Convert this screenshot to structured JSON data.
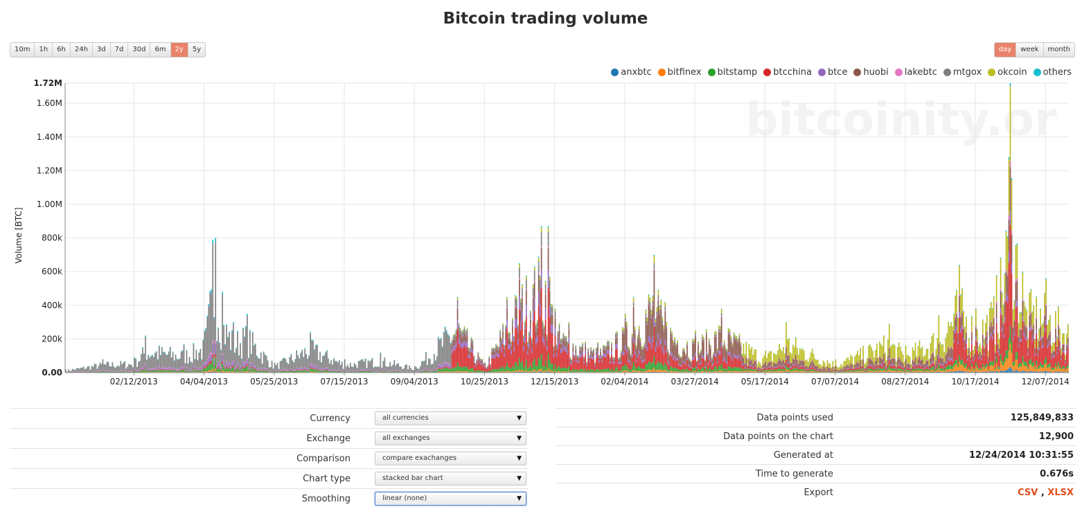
{
  "chart_data": {
    "type": "bar",
    "stacked": true,
    "title": "Bitcoin trading volume",
    "ylabel": "Volume [BTC]",
    "xlabel": "",
    "ylim": [
      0,
      1720000
    ],
    "y_ticks": [
      "0.00",
      "200k",
      "400k",
      "600k",
      "800k",
      "1.00M",
      "1.20M",
      "1.40M",
      "1.60M",
      "1.72M"
    ],
    "x_tick_labels": [
      "02/12/2013",
      "04/04/2013",
      "05/25/2013",
      "07/15/2013",
      "09/04/2013",
      "10/25/2013",
      "12/15/2013",
      "02/04/2014",
      "03/27/2014",
      "05/17/2014",
      "07/07/2014",
      "08/27/2014",
      "10/17/2014",
      "12/07/2014"
    ],
    "x_range": [
      "12/24/2012",
      "12/24/2014"
    ],
    "bar_period": "day",
    "watermark": "bitcoinity.or",
    "legend_position": "top-right",
    "colors": {
      "anxbtc": "#1f77b4",
      "bitfinex": "#ff7f0e",
      "bitstamp": "#2ca02c",
      "btcchina": "#d62728",
      "btce": "#9467bd",
      "huobi": "#8c564b",
      "lakebtc": "#e377c2",
      "mtgox": "#7f7f7f",
      "okcoin": "#bcbd22",
      "others": "#17becf"
    },
    "series_names": [
      "anxbtc",
      "bitfinex",
      "bitstamp",
      "btcchina",
      "btce",
      "huobi",
      "lakebtc",
      "mtgox",
      "okcoin",
      "others"
    ],
    "total_volume_by_date": [
      {
        "date": "12/24/2012",
        "value": 20000
      },
      {
        "date": "01/20/2013",
        "value": 80000
      },
      {
        "date": "02/12/2013",
        "value": 90000
      },
      {
        "date": "02/20/2013",
        "value": 220000
      },
      {
        "date": "03/20/2013",
        "value": 170000
      },
      {
        "date": "04/04/2013",
        "value": 250000
      },
      {
        "date": "04/10/2013",
        "value": 790000
      },
      {
        "date": "04/12/2013",
        "value": 800000
      },
      {
        "date": "04/17/2013",
        "value": 480000
      },
      {
        "date": "04/25/2013",
        "value": 300000
      },
      {
        "date": "05/05/2013",
        "value": 350000
      },
      {
        "date": "05/25/2013",
        "value": 60000
      },
      {
        "date": "06/20/2013",
        "value": 240000
      },
      {
        "date": "07/15/2013",
        "value": 80000
      },
      {
        "date": "08/10/2013",
        "value": 120000
      },
      {
        "date": "09/04/2013",
        "value": 40000
      },
      {
        "date": "10/05/2013",
        "value": 450000
      },
      {
        "date": "10/25/2013",
        "value": 60000
      },
      {
        "date": "11/10/2013",
        "value": 450000
      },
      {
        "date": "11/19/2013",
        "value": 650000
      },
      {
        "date": "12/05/2013",
        "value": 870000
      },
      {
        "date": "12/10/2013",
        "value": 870000
      },
      {
        "date": "12/15/2013",
        "value": 380000
      },
      {
        "date": "12/25/2013",
        "value": 300000
      },
      {
        "date": "01/15/2014",
        "value": 180000
      },
      {
        "date": "02/04/2014",
        "value": 350000
      },
      {
        "date": "02/10/2014",
        "value": 450000
      },
      {
        "date": "02/25/2014",
        "value": 700000
      },
      {
        "date": "03/05/2014",
        "value": 420000
      },
      {
        "date": "03/27/2014",
        "value": 250000
      },
      {
        "date": "04/15/2014",
        "value": 380000
      },
      {
        "date": "05/17/2014",
        "value": 130000
      },
      {
        "date": "06/01/2014",
        "value": 300000
      },
      {
        "date": "07/07/2014",
        "value": 80000
      },
      {
        "date": "08/15/2014",
        "value": 290000
      },
      {
        "date": "08/27/2014",
        "value": 160000
      },
      {
        "date": "09/20/2014",
        "value": 340000
      },
      {
        "date": "10/05/2014",
        "value": 640000
      },
      {
        "date": "10/17/2014",
        "value": 380000
      },
      {
        "date": "11/01/2014",
        "value": 580000
      },
      {
        "date": "11/10/2014",
        "value": 1280000
      },
      {
        "date": "11/11/2014",
        "value": 1720000
      },
      {
        "date": "11/20/2014",
        "value": 600000
      },
      {
        "date": "12/07/2014",
        "value": 560000
      },
      {
        "date": "12/24/2014",
        "value": 380000
      }
    ]
  },
  "range_buttons": {
    "items": [
      {
        "label": "10m",
        "active": false
      },
      {
        "label": "1h",
        "active": false
      },
      {
        "label": "6h",
        "active": false
      },
      {
        "label": "24h",
        "active": false
      },
      {
        "label": "3d",
        "active": false
      },
      {
        "label": "7d",
        "active": false
      },
      {
        "label": "30d",
        "active": false
      },
      {
        "label": "6m",
        "active": false
      },
      {
        "label": "2y",
        "active": true
      },
      {
        "label": "5y",
        "active": false
      }
    ]
  },
  "period_buttons": {
    "items": [
      {
        "label": "day",
        "active": true
      },
      {
        "label": "week",
        "active": false
      },
      {
        "label": "month",
        "active": false
      }
    ]
  },
  "controls": [
    {
      "label": "Currency",
      "value": "all currencies"
    },
    {
      "label": "Exchange",
      "value": "all exchanges"
    },
    {
      "label": "Comparison",
      "value": "compare exachanges"
    },
    {
      "label": "Chart type",
      "value": "stacked bar chart"
    },
    {
      "label": "Smoothing",
      "value": "linear (none)"
    }
  ],
  "info": {
    "data_points_used": {
      "label": "Data points used",
      "value": "125,849,833"
    },
    "data_points_chart": {
      "label": "Data points on the chart",
      "value": "12,900"
    },
    "generated_at": {
      "label": "Generated at",
      "value": "12/24/2014 10:31:55"
    },
    "time_to_generate": {
      "label": "Time to generate",
      "value": "0.676s"
    },
    "export": {
      "label": "Export",
      "csv": "CSV",
      "sep": " , ",
      "xlsx": "XLSX"
    }
  }
}
